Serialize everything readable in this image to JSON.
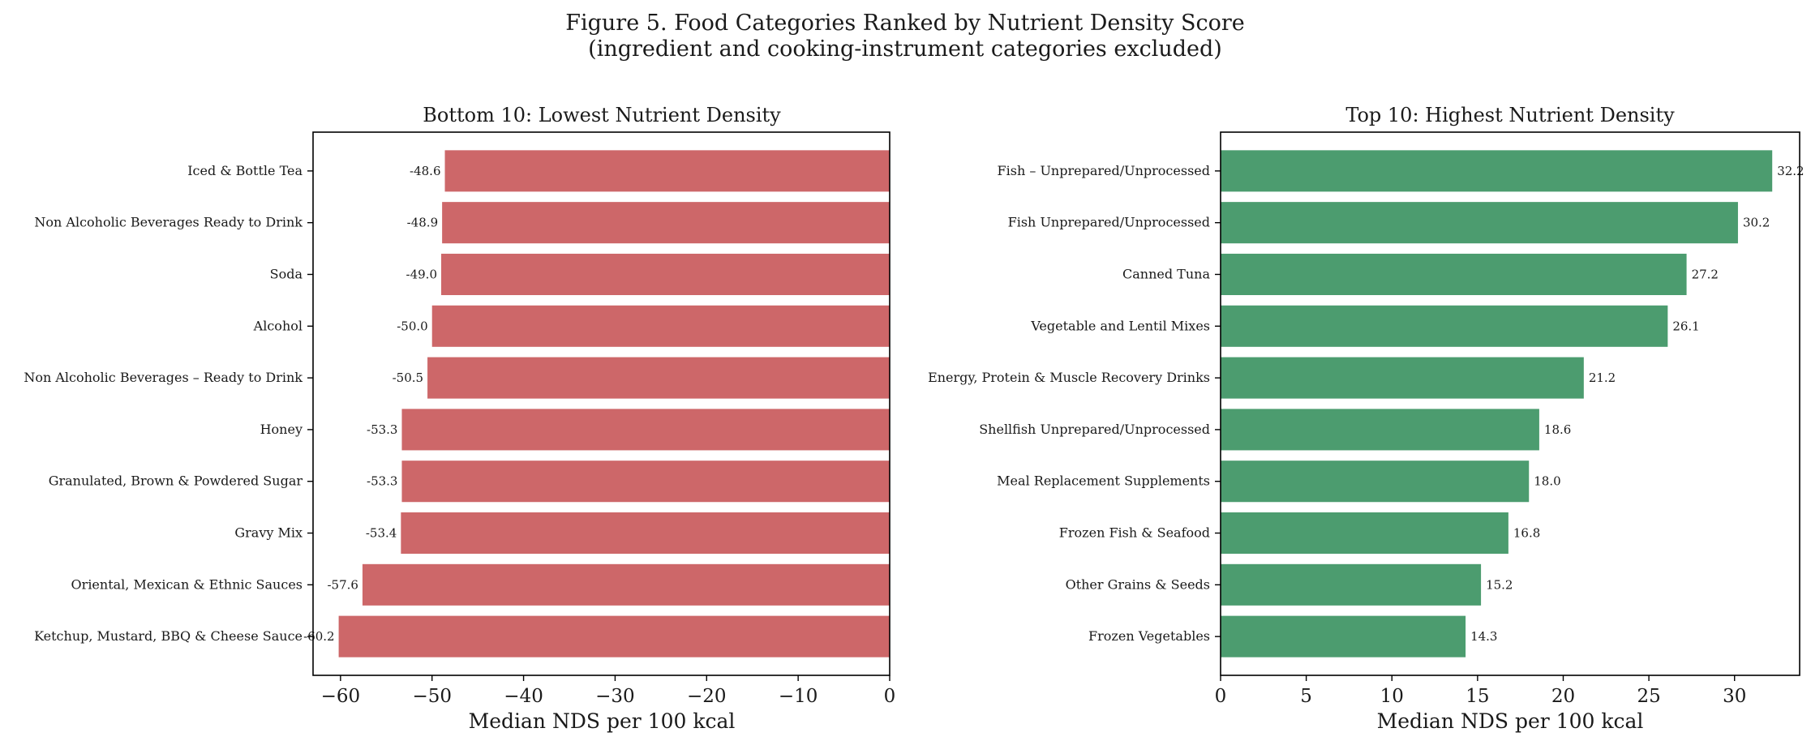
{
  "figure": {
    "title_line1": "Figure 5. Food Categories Ranked by Nutrient Density Score",
    "title_line2": "(ingredient and cooking-instrument categories excluded)"
  },
  "chart_data": [
    {
      "type": "bar",
      "orientation": "horizontal",
      "title": "Bottom 10: Lowest Nutrient Density",
      "xlabel": "Median NDS per 100 kcal",
      "ylabel": "",
      "xlim": [
        -63,
        0
      ],
      "xticks": [
        -60,
        -50,
        -40,
        -30,
        -20,
        -10,
        0
      ],
      "xtick_labels": [
        "−60",
        "−50",
        "−40",
        "−30",
        "−20",
        "−10",
        "0"
      ],
      "color": "#cd6769",
      "grid": false,
      "categories": [
        "Iced & Bottle Tea",
        "Non Alcoholic Beverages  Ready to Drink",
        "Soda",
        "Alcohol",
        "Non Alcoholic Beverages – Ready to Drink",
        "Honey",
        "Granulated, Brown & Powdered Sugar",
        "Gravy Mix",
        "Oriental, Mexican & Ethnic Sauces",
        "Ketchup, Mustard, BBQ & Cheese Sauce"
      ],
      "values": [
        -48.6,
        -48.9,
        -49.0,
        -50.0,
        -50.5,
        -53.3,
        -53.3,
        -53.4,
        -57.6,
        -60.2
      ],
      "labels": [
        "-48.6",
        "-48.9",
        "-49.0",
        "-50.0",
        "-50.5",
        "-53.3",
        "-53.3",
        "-53.4",
        "-57.6",
        "-60.2"
      ]
    },
    {
      "type": "bar",
      "orientation": "horizontal",
      "title": "Top 10: Highest Nutrient Density",
      "xlabel": "Median NDS per 100 kcal",
      "ylabel": "",
      "xlim": [
        0,
        33.8
      ],
      "xticks": [
        0,
        5,
        10,
        15,
        20,
        25,
        30
      ],
      "xtick_labels": [
        "0",
        "5",
        "10",
        "15",
        "20",
        "25",
        "30"
      ],
      "color": "#4c9c6f",
      "grid": false,
      "categories": [
        "Fish – Unprepared/Unprocessed",
        "Fish  Unprepared/Unprocessed",
        "Canned Tuna",
        "Vegetable and Lentil Mixes",
        "Energy, Protein & Muscle Recovery Drinks",
        "Shellfish Unprepared/Unprocessed",
        "Meal Replacement Supplements",
        "Frozen Fish & Seafood",
        "Other Grains & Seeds",
        "Frozen Vegetables"
      ],
      "values": [
        32.2,
        30.2,
        27.2,
        26.1,
        21.2,
        18.6,
        18.0,
        16.8,
        15.2,
        14.3
      ],
      "labels": [
        "32.2",
        "30.2",
        "27.2",
        "26.1",
        "21.2",
        "18.6",
        "18.0",
        "16.8",
        "15.2",
        "14.3"
      ]
    }
  ]
}
